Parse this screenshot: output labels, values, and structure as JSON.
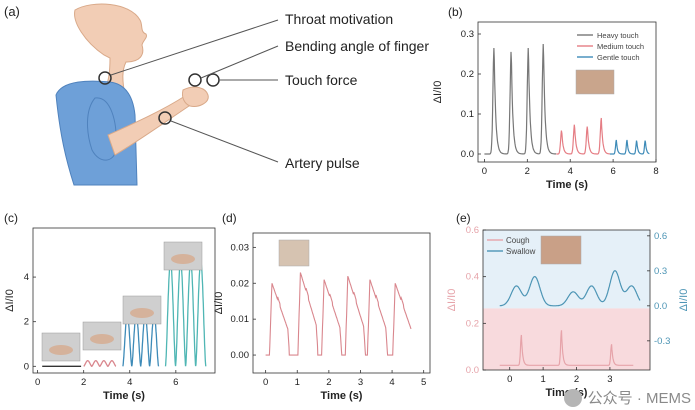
{
  "colors": {
    "skin": "#f2cdb5",
    "shirt": "#6ea0d8",
    "heavy": "#777777",
    "medium": "#e57d84",
    "gentle": "#3e8bb8",
    "teal": "#4fb6b4",
    "red": "#d9868d",
    "cough": "#e6a3a9",
    "swallow": "#4d95b5",
    "pinkBg": "#f8dadd",
    "blueBg": "#e5f0f8"
  },
  "panel_a": {
    "label": "(a)",
    "annotations": [
      "Throat motivation",
      "Bending angle of finger",
      "Touch force",
      "Artery pulse"
    ]
  },
  "chart_data": [
    {
      "id": "b",
      "label": "(b)",
      "type": "line",
      "xlabel": "Time (s)",
      "ylabel": "ΔI/I0",
      "xlim": [
        -0.3,
        8
      ],
      "ylim": [
        -0.02,
        0.33
      ],
      "xticks": [
        0,
        2,
        4,
        6,
        8
      ],
      "yticks": [
        0.0,
        0.1,
        0.2,
        0.3
      ],
      "legend": "top-right",
      "series": [
        {
          "name": "Heavy touch",
          "color": "#777777",
          "baseline": 0.0,
          "width": 0.18,
          "peaks": [
            [
              0.45,
              0.27
            ],
            [
              1.25,
              0.26
            ],
            [
              2.05,
              0.27
            ],
            [
              2.75,
              0.28
            ]
          ],
          "x0": 0.0,
          "x1": 3.35
        },
        {
          "name": "Medium touch",
          "color": "#e57d84",
          "baseline": 0.0,
          "width": 0.16,
          "peaks": [
            [
              3.6,
              0.06
            ],
            [
              4.2,
              0.075
            ],
            [
              4.8,
              0.07
            ],
            [
              5.45,
              0.09
            ]
          ],
          "x0": 3.35,
          "x1": 5.85
        },
        {
          "name": "Gentle touch",
          "color": "#3e8bb8",
          "baseline": 0.0,
          "width": 0.12,
          "peaks": [
            [
              6.15,
              0.035
            ],
            [
              6.65,
              0.035
            ],
            [
              7.1,
              0.035
            ],
            [
              7.5,
              0.035
            ]
          ],
          "x0": 5.85,
          "x1": 7.7
        }
      ]
    },
    {
      "id": "c",
      "label": "(c)",
      "type": "line",
      "xlabel": "Time (s)",
      "ylabel": "ΔI/I0",
      "xlim": [
        -0.2,
        7.7
      ],
      "ylim": [
        -0.3,
        6.2
      ],
      "xticks": [
        0,
        2,
        4,
        6
      ],
      "yticks": [
        0,
        2,
        4
      ],
      "series": [
        {
          "color": "#333333",
          "x0": 0.2,
          "x1": 1.9,
          "amp": 0,
          "count": 0
        },
        {
          "color": "#d9868d",
          "x0": 2.0,
          "x1": 3.4,
          "amp": 0.25,
          "count": 4
        },
        {
          "color": "#3e8bb8",
          "x0": 3.7,
          "x1": 5.25,
          "amp": 2.3,
          "count": 4
        },
        {
          "color": "#4fb6b4",
          "x0": 5.55,
          "x1": 7.3,
          "amp": 4.7,
          "count": 4
        }
      ]
    },
    {
      "id": "d",
      "label": "(d)",
      "type": "line",
      "xlabel": "Time (s)",
      "ylabel": "ΔI/I0",
      "xlim": [
        -0.4,
        5.2
      ],
      "ylim": [
        -0.005,
        0.034
      ],
      "xticks": [
        0,
        1,
        2,
        3,
        4,
        5
      ],
      "yticks": [
        0.0,
        0.01,
        0.02,
        0.03
      ],
      "series": [
        {
          "color": "#d9868d",
          "peaks": [
            [
              0.2,
              0.02
            ],
            [
              1.1,
              0.023
            ],
            [
              1.85,
              0.021
            ],
            [
              2.6,
              0.022
            ],
            [
              3.3,
              0.021
            ],
            [
              4.1,
              0.02
            ]
          ]
        }
      ]
    },
    {
      "id": "e",
      "label": "(e)",
      "type": "line",
      "xlabel": "Time (s)",
      "ylabel_left": "ΔI/I0",
      "ylabel_right": "ΔI/I0",
      "xlim": [
        -0.8,
        4.2
      ],
      "xticks": [
        0,
        1,
        2,
        3
      ],
      "ylim_left": [
        0,
        0.6
      ],
      "yticks_left": [
        0.0,
        0.2,
        0.4,
        0.6
      ],
      "ylim_right": [
        -0.55,
        0.65
      ],
      "yticks_right": [
        -0.3,
        0.0,
        0.3,
        0.6
      ],
      "legend": "top-left",
      "series": [
        {
          "name": "Cough",
          "color": "#e6a3a9",
          "axis": "left",
          "baseline": 0.02,
          "peaks": [
            [
              0.35,
              0.15
            ],
            [
              1.55,
              0.17
            ],
            [
              3.05,
              0.11
            ]
          ]
        },
        {
          "name": "Swallow",
          "color": "#4d95b5",
          "axis": "right",
          "baseline": 0.0,
          "humps": [
            [
              0.2,
              0.25
            ],
            [
              0.75,
              0.33
            ],
            [
              1.9,
              0.2
            ],
            [
              2.45,
              0.25
            ],
            [
              3.15,
              0.38
            ],
            [
              3.65,
              0.25
            ]
          ]
        }
      ]
    }
  ]
}
